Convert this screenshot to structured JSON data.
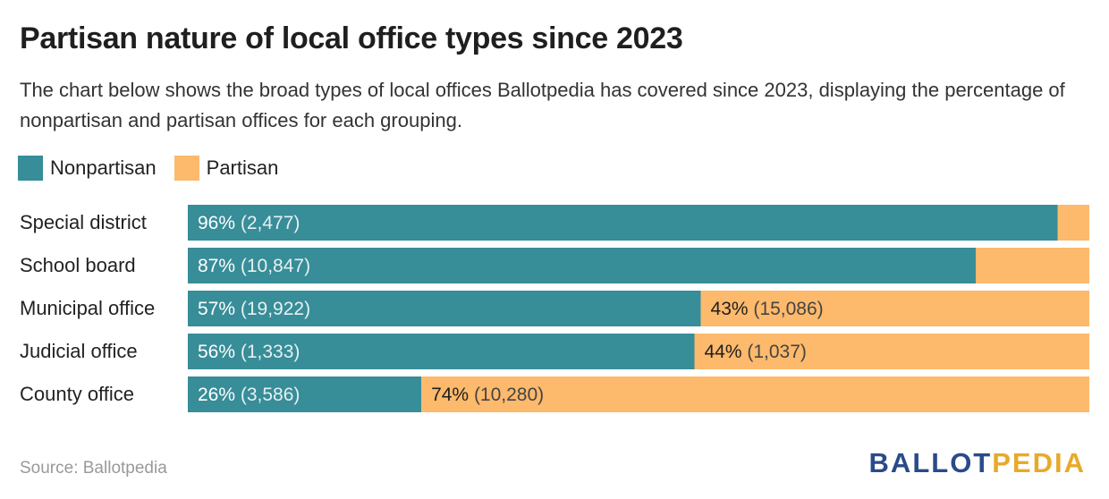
{
  "title": "Partisan nature of local office types since 2023",
  "subtitle": "The chart below shows the broad types of local offices Ballotpedia has covered since 2023, displaying the percentage of nonpartisan and partisan offices for each grouping.",
  "legend": [
    {
      "label": "Nonpartisan",
      "color": "#378d98"
    },
    {
      "label": "Partisan",
      "color": "#fdb96c"
    }
  ],
  "source": "Source: Ballotpedia",
  "logo": {
    "part1": "BALLOT",
    "part2": "PEDIA"
  },
  "chart_data": {
    "type": "bar",
    "orientation": "horizontal",
    "stacked": true,
    "categories": [
      "Special district",
      "School board",
      "Municipal office",
      "Judicial office",
      "County office"
    ],
    "series": [
      {
        "name": "Nonpartisan",
        "color": "#378d98",
        "values": [
          96.5,
          87.4,
          56.9,
          56.2,
          25.9
        ],
        "labels": [
          "96%",
          "87%",
          "57%",
          "56%",
          "26%"
        ],
        "counts": [
          "(2,477)",
          "(10,847)",
          "(19,922)",
          "(1,333)",
          "(3,586)"
        ]
      },
      {
        "name": "Partisan",
        "color": "#fdb96c",
        "values": [
          3.5,
          12.6,
          43.1,
          43.8,
          74.1
        ],
        "labels": [
          "",
          "",
          "43%",
          "44%",
          "74%"
        ],
        "counts": [
          "",
          "",
          "(15,086)",
          "(1,037)",
          "(10,280)"
        ]
      }
    ],
    "xlim": [
      0,
      100
    ],
    "grid": false,
    "legend_position": "top-left"
  }
}
